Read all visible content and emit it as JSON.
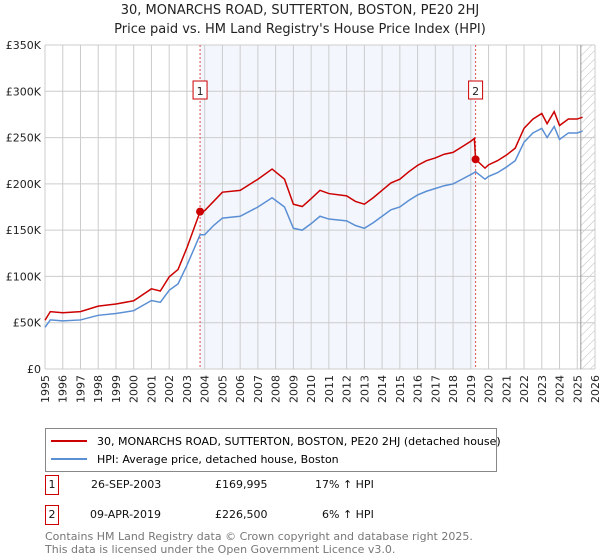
{
  "title": "30, MONARCHS ROAD, SUTTERTON, BOSTON, PE20 2HJ",
  "subtitle": "Price paid vs. HM Land Registry's House Price Index (HPI)",
  "chart_data": {
    "type": "line",
    "xlim": [
      1995,
      2026
    ],
    "ylim": [
      0,
      350000
    ],
    "yticks": [
      {
        "v": 0,
        "label": "£0"
      },
      {
        "v": 50000,
        "label": "£50K"
      },
      {
        "v": 100000,
        "label": "£100K"
      },
      {
        "v": 150000,
        "label": "£150K"
      },
      {
        "v": 200000,
        "label": "£200K"
      },
      {
        "v": 250000,
        "label": "£250K"
      },
      {
        "v": 300000,
        "label": "£300K"
      },
      {
        "v": 350000,
        "label": "£350K"
      }
    ],
    "xticks": [
      "1995",
      "1996",
      "1997",
      "1998",
      "1999",
      "2000",
      "2001",
      "2002",
      "2003",
      "2004",
      "2005",
      "2006",
      "2007",
      "2008",
      "2009",
      "2010",
      "2011",
      "2012",
      "2013",
      "2014",
      "2015",
      "2016",
      "2017",
      "2018",
      "2019",
      "2020",
      "2021",
      "2022",
      "2023",
      "2024",
      "2025",
      "2026"
    ],
    "shaded_range": [
      2003.74,
      2019.27
    ],
    "forecast_from": 2025.2,
    "series": [
      {
        "name": "30, MONARCHS ROAD, SUTTERTON, BOSTON, PE20 2HJ (detached house)",
        "color": "#cc0000",
        "x": [
          1995,
          1995.3,
          1996,
          1997,
          1998,
          1999,
          2000,
          2001,
          2001.5,
          2002,
          2002.5,
          2003,
          2003.74,
          2004,
          2004.5,
          2005,
          2006,
          2007,
          2007.8,
          2008.5,
          2009,
          2009.5,
          2010,
          2010.5,
          2011,
          2012,
          2012.5,
          2013,
          2013.5,
          2014,
          2014.5,
          2015,
          2015.5,
          2016,
          2016.5,
          2017,
          2017.5,
          2018,
          2018.5,
          2019,
          2019.2,
          2019.27,
          2019.8,
          2020,
          2020.5,
          2021,
          2021.5,
          2022,
          2022.5,
          2023,
          2023.3,
          2023.7,
          2024,
          2024.5,
          2025,
          2025.3
        ],
        "y": [
          52700,
          62000,
          60800,
          62000,
          67900,
          70200,
          73700,
          86600,
          84200,
          99500,
          107600,
          131000,
          169995,
          171000,
          181000,
          191000,
          193000,
          205000,
          216000,
          205000,
          178000,
          175500,
          184000,
          193000,
          189500,
          187000,
          181000,
          178000,
          185000,
          193000,
          201000,
          205000,
          213000,
          220000,
          225000,
          228000,
          232000,
          234000,
          240000,
          246000,
          249000,
          226500,
          217000,
          220500,
          225000,
          231000,
          238500,
          260000,
          270000,
          276000,
          265000,
          278000,
          263000,
          270000,
          270000,
          272000
        ]
      },
      {
        "name": "HPI: Average price, detached house, Boston",
        "color": "#5b8fd4",
        "x": [
          1995,
          1995.3,
          1996,
          1997,
          1998,
          1999,
          2000,
          2001,
          2001.5,
          2002,
          2002.5,
          2003,
          2003.74,
          2004,
          2004.5,
          2005,
          2006,
          2007,
          2007.8,
          2008.5,
          2009,
          2009.5,
          2010,
          2010.5,
          2011,
          2012,
          2012.5,
          2013,
          2013.5,
          2014,
          2014.5,
          2015,
          2015.5,
          2016,
          2016.5,
          2017,
          2017.5,
          2018,
          2018.5,
          2019,
          2019.27,
          2019.8,
          2020,
          2020.5,
          2021,
          2021.5,
          2022,
          2022.5,
          2023,
          2023.3,
          2023.7,
          2024,
          2024.5,
          2025,
          2025.3
        ],
        "y": [
          45000,
          53000,
          52000,
          53000,
          58000,
          60000,
          63000,
          74000,
          72000,
          85000,
          92000,
          112000,
          145000,
          145000,
          155000,
          163000,
          165000,
          175000,
          185000,
          175000,
          152000,
          150000,
          157000,
          165000,
          162000,
          160000,
          155000,
          152000,
          158000,
          165000,
          172000,
          175000,
          182000,
          188000,
          192000,
          195000,
          198000,
          200000,
          205000,
          210000,
          213000,
          205000,
          208000,
          212000,
          218000,
          225000,
          245000,
          255000,
          260000,
          250000,
          262000,
          248000,
          255000,
          255000,
          257000
        ]
      }
    ],
    "sales": [
      {
        "label": "1",
        "x": 2003.74,
        "y": 169995,
        "date": "26-SEP-2003",
        "price": "£169,995",
        "hpi": "17% ↑ HPI"
      },
      {
        "label": "2",
        "x": 2019.27,
        "y": 226500,
        "date": "09-APR-2019",
        "price": "£226,500",
        "hpi": "6% ↑ HPI"
      }
    ]
  },
  "footer": {
    "line1": "Contains HM Land Registry data © Crown copyright and database right 2025.",
    "line2": "This data is licensed under the Open Government Licence v3.0."
  }
}
